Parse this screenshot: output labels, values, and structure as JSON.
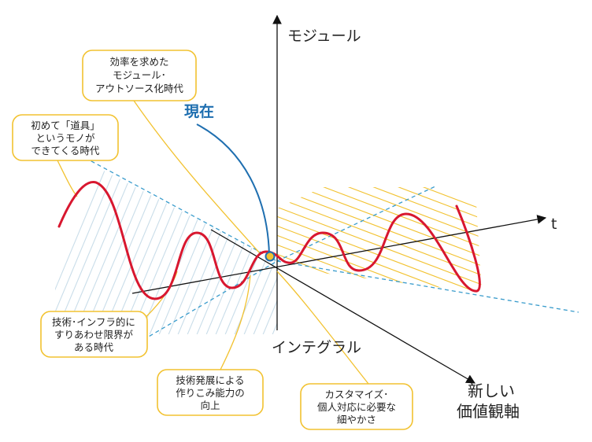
{
  "axes": {
    "modular": "モジュール",
    "integral": "インテグラル",
    "time": "t",
    "new_axis": [
      "新しい",
      "価値観軸"
    ]
  },
  "now_label": "現在",
  "callouts": {
    "tools": [
      "初めて「道具」",
      "というモノが",
      "できてくる時代"
    ],
    "modular_outsourcing": [
      "効率を求めた",
      "モジュール･",
      "アウトソース化時代"
    ],
    "tech_infra": [
      "技術･インフラ的に",
      "すりあわせ限界が",
      "ある時代"
    ],
    "tech_dev": [
      "技術発展による",
      "作りこみ能力の",
      "向上"
    ],
    "customize": [
      "カスタマイズ･",
      "個人対応に必要な",
      "細やかさ"
    ]
  },
  "colors": {
    "wave": "#d8172f",
    "past_hatch": "#c9dde9",
    "future_hatch": "#f2c230",
    "guide_dashed": "#3a9ccc",
    "now_marker": "#1f6fb0",
    "callout_border": "#f2c230"
  }
}
